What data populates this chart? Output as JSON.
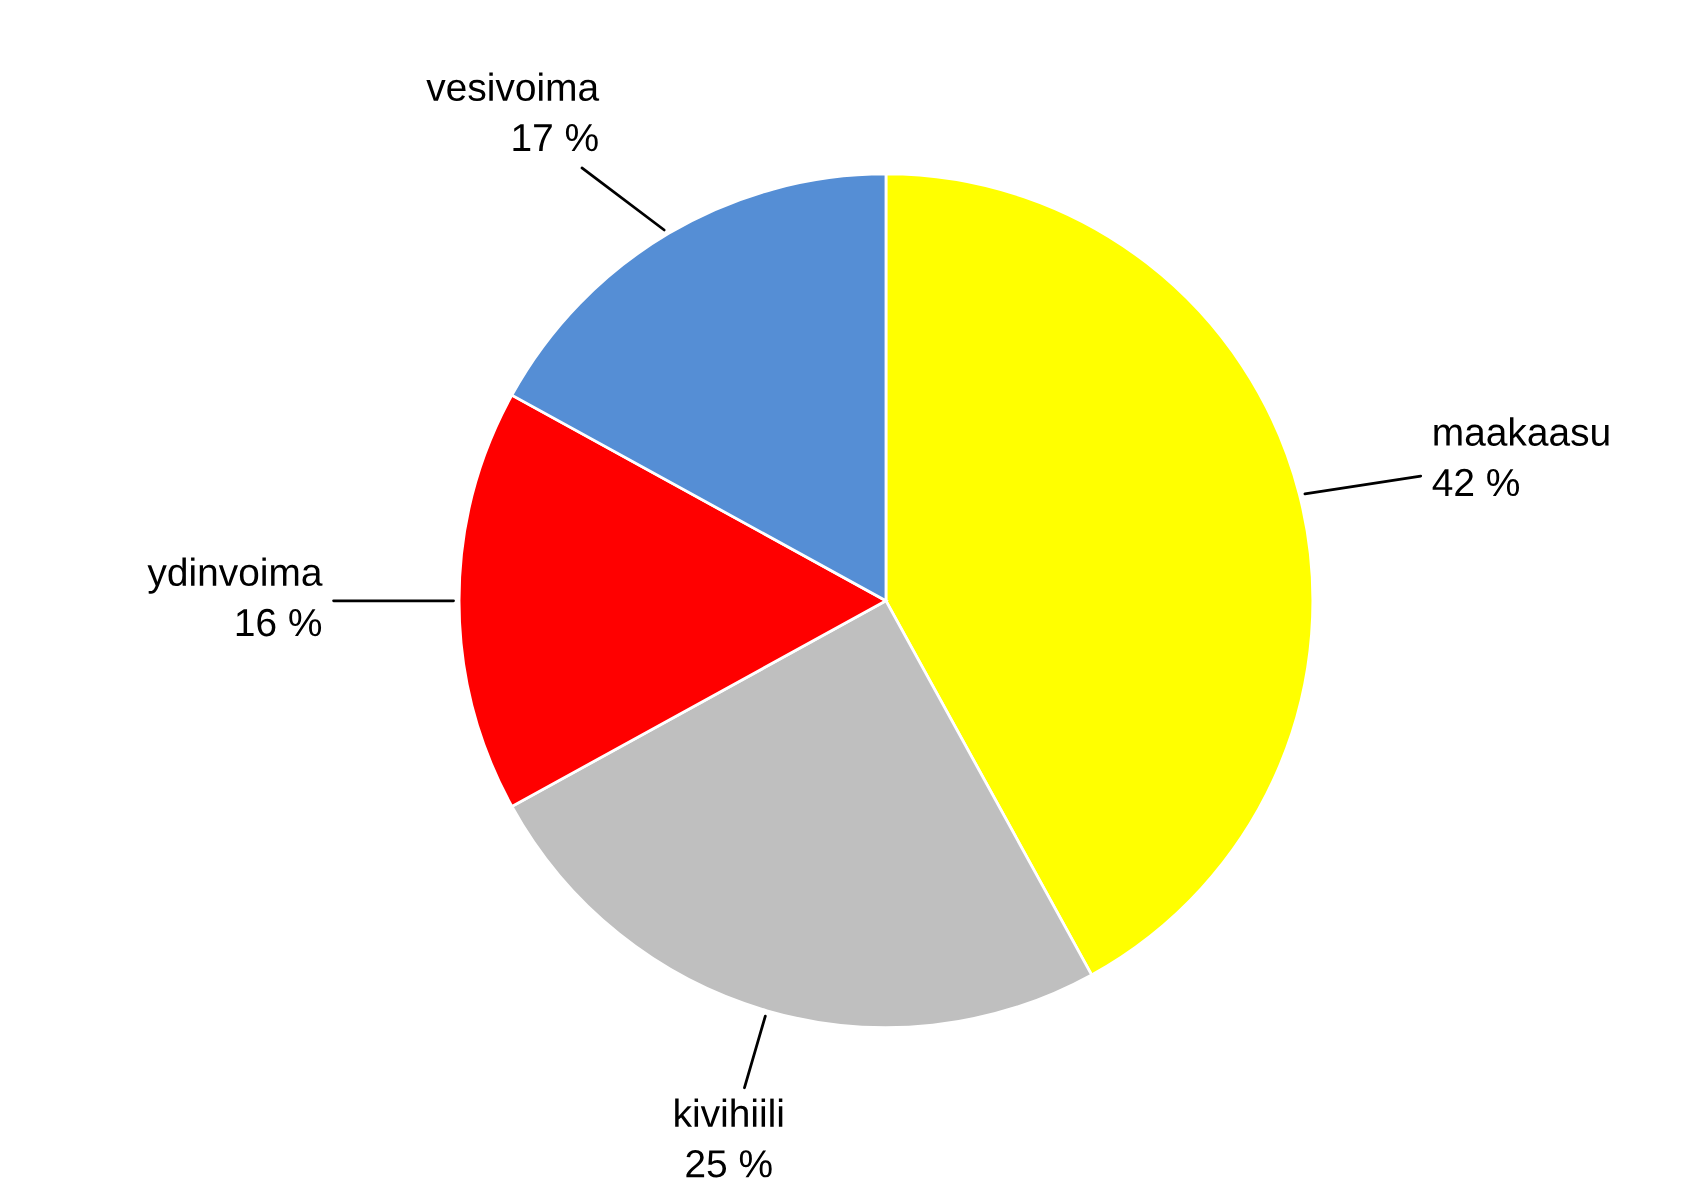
{
  "chart_data": {
    "type": "pie",
    "categories": [
      "maakaasu",
      "kivihiili",
      "ydinvoima",
      "vesivoima"
    ],
    "values": [
      42,
      25,
      16,
      17
    ],
    "colors": [
      "#ffff00",
      "#bfbfbf",
      "#ff0000",
      "#558ed5"
    ],
    "value_labels": [
      "42 %",
      "25 %",
      "16 %",
      "17 %"
    ]
  }
}
